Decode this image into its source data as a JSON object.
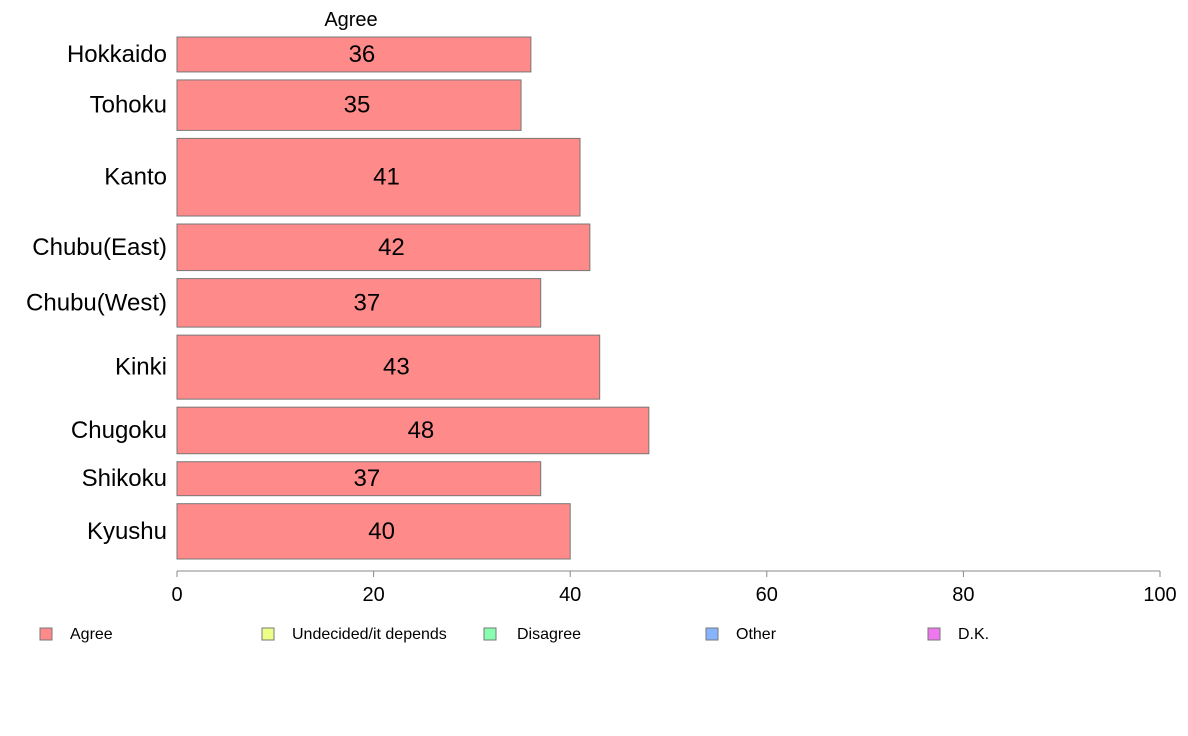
{
  "chart_data": {
    "type": "bar",
    "orientation": "horizontal",
    "stacked": true,
    "series_heading": "Agree",
    "categories": [
      "Hokkaido",
      "Tohoku",
      "Kanto",
      "Chubu(East)",
      "Chubu(West)",
      "Kinki",
      "Chugoku",
      "Shikoku",
      "Kyushu"
    ],
    "series": [
      {
        "name": "Agree",
        "color": "#ff8a8a",
        "values": [
          36,
          35,
          41,
          42,
          37,
          43,
          48,
          37,
          40
        ]
      }
    ],
    "category_weights": [
      36,
      52,
      80,
      48,
      50,
      66,
      48,
      35,
      57
    ],
    "xlim": [
      0,
      100
    ],
    "xticks": [
      "0",
      "20",
      "40",
      "60",
      "80",
      "100"
    ],
    "xtick_values": [
      0,
      20,
      40,
      60,
      80,
      100
    ],
    "grid": false,
    "legend_position": "bottom",
    "legend": [
      {
        "label": "Agree",
        "color": "#ff8a8a"
      },
      {
        "label": "Undecided/it depends",
        "color": "#eeff88"
      },
      {
        "label": "Disagree",
        "color": "#88ffb0"
      },
      {
        "label": "Other",
        "color": "#88b4ff"
      },
      {
        "label": "D.K.",
        "color": "#ee77ee"
      }
    ]
  }
}
